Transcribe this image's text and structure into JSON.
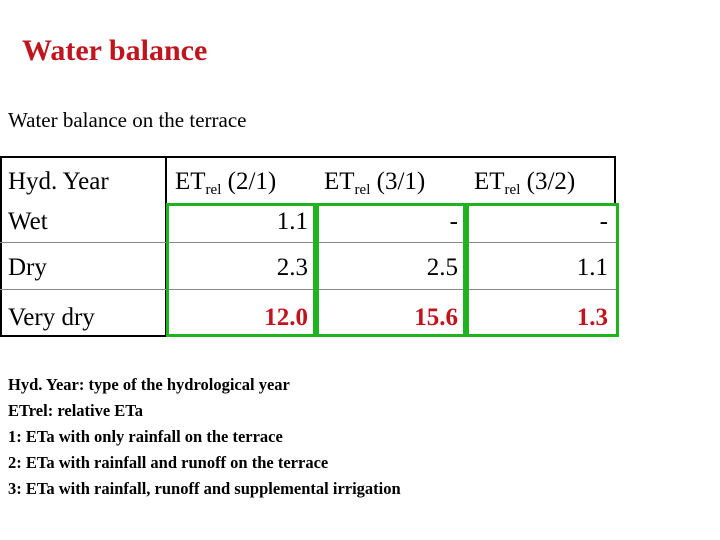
{
  "title": "Water balance",
  "subtitle": "Water balance on the terrace",
  "table": {
    "headers": [
      {
        "main": "Hyd. Year",
        "sub": "",
        "suffix": ""
      },
      {
        "main": "ET",
        "sub": "rel",
        "suffix": " (2/1)"
      },
      {
        "main": "ET",
        "sub": "rel",
        "suffix": " (3/1)"
      },
      {
        "main": "ET",
        "sub": "rel",
        "suffix": " (3/2)"
      }
    ],
    "rows": [
      {
        "year": "Wet",
        "c1": "1.1",
        "c2": "-",
        "c3": "-"
      },
      {
        "year": "Dry",
        "c1": "2.3",
        "c2": "2.5",
        "c3": "1.1"
      },
      {
        "year": "Very dry",
        "c1": "12.0",
        "c2": "15.6",
        "c3": "1.3"
      }
    ],
    "highlight_color": "#c0141e",
    "box_color": "#1fb320"
  },
  "notes": [
    "Hyd. Year: type of the hydrological year",
    "ETrel: relative ETa",
    "1: ETa with only rainfall on the terrace",
    "2: ETa with rainfall and runoff on the terrace",
    "3: ETa with rainfall, runoff and supplemental irrigation"
  ]
}
